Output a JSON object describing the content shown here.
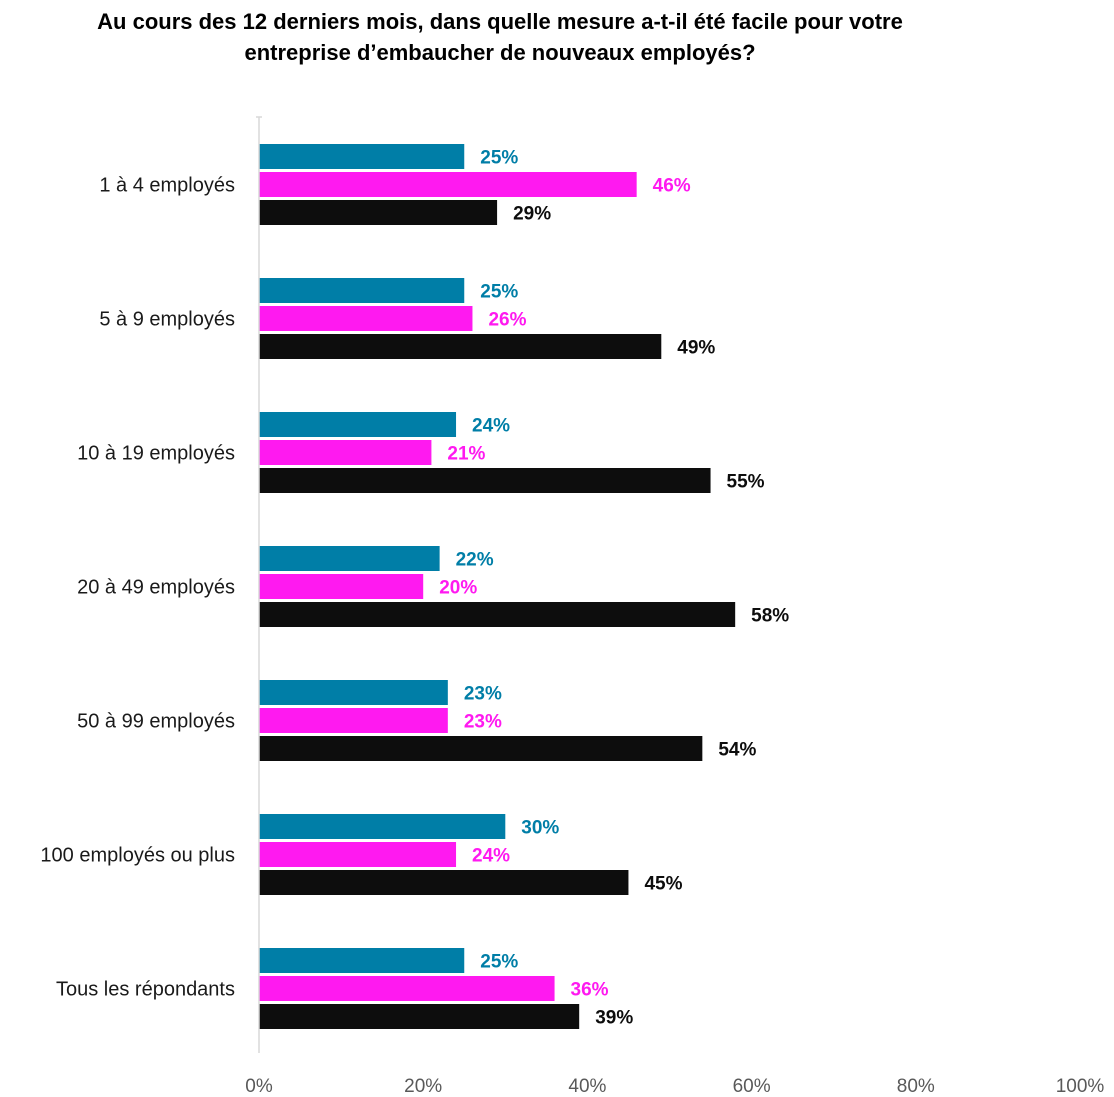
{
  "chart_data": {
    "type": "bar",
    "orientation": "horizontal",
    "title": "Au cours des 12 derniers mois, dans quelle mesure a-t-il été facile pour votre entreprise d’embaucher de nouveaux employés?",
    "title_lines": [
      "Au cours des 12 derniers mois, dans quelle mesure a-t-il été facile pour votre",
      "entreprise d’embaucher de nouveaux employés?"
    ],
    "categories": [
      "1 à 4 employés",
      "5 à 9 employés",
      "10 à 19 employés",
      "20 à 49 employés",
      "50 à 99 employés",
      "100 employés ou plus",
      "Tous les répondants"
    ],
    "series": [
      {
        "color": "#007EA7",
        "values": [
          25,
          25,
          24,
          22,
          23,
          30,
          25
        ]
      },
      {
        "color": "#FF19F0",
        "values": [
          46,
          26,
          21,
          20,
          23,
          24,
          36
        ]
      },
      {
        "color": "#0D0D0D",
        "values": [
          29,
          49,
          55,
          58,
          54,
          45,
          39
        ]
      }
    ],
    "value_suffix": "%",
    "xlim": [
      0,
      100
    ],
    "xticks": [
      "0%",
      "20%",
      "40%",
      "60%",
      "80%",
      "100%"
    ],
    "grid": false,
    "legend": "none",
    "xlabel": "",
    "ylabel": ""
  }
}
